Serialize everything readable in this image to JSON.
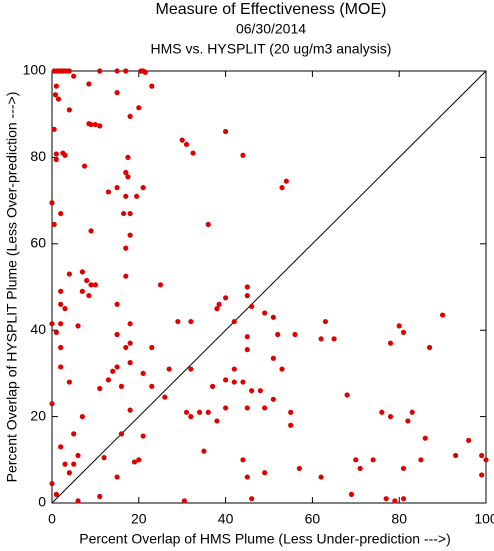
{
  "chart_data": {
    "type": "scatter",
    "title": "Measure of Effectiveness (MOE)",
    "subtitle": "06/30/2014",
    "subtitle2": "HMS vs. HYSPLIT  (20 ug/m3 analysis)",
    "x_label": "Percent Overlap of HMS Plume (Less Under-prediction --->)",
    "y_label": "Percent Overlap of HYSPLIT Plume (Less Over-prediction --->)",
    "color": "#e00000",
    "xlim": [
      0,
      100
    ],
    "ylim": [
      0,
      100
    ],
    "xticks": [
      0,
      20,
      40,
      60,
      80,
      100
    ],
    "yticks": [
      0,
      20,
      40,
      60,
      80,
      100
    ],
    "x": [
      0.5,
      1,
      1.5,
      2,
      2.5,
      3,
      3.5,
      4,
      11,
      15,
      17,
      20.5,
      21,
      21.5,
      5,
      8.5,
      23,
      1,
      0.8,
      1.5,
      15,
      4,
      20,
      18,
      8.5,
      9,
      10,
      11,
      0.5,
      40,
      30,
      2.5,
      1,
      3,
      31,
      32.5,
      44,
      1,
      17.5,
      7.5,
      17,
      17.5,
      15,
      21,
      13,
      17,
      19.5,
      53,
      54,
      0,
      16.5,
      2,
      18,
      0.5,
      9,
      18,
      36,
      17,
      4,
      7,
      8,
      17,
      25,
      9,
      10,
      2,
      7,
      8.5,
      15,
      2,
      3,
      38,
      40,
      38.5,
      45,
      45,
      46,
      49,
      51,
      2,
      6,
      18,
      29,
      32,
      42,
      0,
      1,
      2,
      15,
      18,
      17,
      23,
      45,
      52,
      56,
      62,
      63,
      65,
      80,
      81,
      78,
      90,
      87,
      45,
      51,
      53,
      42,
      42,
      40,
      37,
      44,
      46,
      48,
      14,
      15,
      18,
      21,
      32,
      11,
      13,
      16,
      4,
      2,
      27,
      23,
      26,
      7,
      18,
      0,
      5,
      2,
      16,
      21,
      31,
      32,
      34,
      36,
      38,
      40,
      45,
      51,
      49,
      55,
      55,
      76,
      78,
      83,
      82,
      86,
      68,
      70,
      74,
      81,
      85,
      93,
      96,
      99,
      0,
      1,
      3,
      4,
      5,
      6,
      12,
      15,
      19,
      20,
      35,
      44,
      45,
      49,
      57,
      62,
      69,
      71,
      77,
      79,
      81,
      6,
      11,
      30.5,
      46,
      99,
      100
    ],
    "values": [
      100,
      100,
      100,
      100,
      100,
      100,
      100,
      100,
      100,
      100,
      100,
      100,
      100,
      99.7,
      98.8,
      97,
      96.5,
      96.5,
      94.5,
      93.5,
      95,
      91,
      91.5,
      89.5,
      87.8,
      87.6,
      87.6,
      87.3,
      86.5,
      86,
      84,
      81,
      80.8,
      80.5,
      83,
      81,
      80.5,
      79.5,
      80,
      78,
      76.5,
      75.5,
      73,
      73,
      72,
      71,
      71,
      73,
      74.5,
      69.5,
      67,
      67,
      67,
      64.5,
      63,
      62,
      64.5,
      59,
      53,
      53.5,
      51.5,
      52.5,
      50.5,
      50.5,
      50.5,
      49,
      49,
      48,
      46,
      46,
      45,
      45,
      47.5,
      46,
      50,
      48,
      45.5,
      44,
      43,
      41.5,
      41,
      41.5,
      42,
      42,
      42,
      41.5,
      39.5,
      36,
      39,
      37,
      36,
      36,
      38.5,
      39,
      39,
      38,
      42,
      38,
      41,
      39.5,
      37,
      43.5,
      36,
      35.5,
      33.5,
      31,
      31,
      28,
      28.5,
      27,
      28,
      26,
      26,
      30.5,
      31.5,
      32.5,
      30,
      31,
      26.5,
      28.5,
      27,
      28,
      31.5,
      31,
      27,
      24.5,
      20,
      21.5,
      23,
      16,
      13,
      16,
      15.5,
      21,
      20,
      21,
      21,
      19,
      22,
      22,
      24,
      22,
      21,
      18,
      21,
      20,
      21,
      19,
      15,
      25,
      10,
      10,
      8,
      10,
      11,
      14.5,
      11,
      4.5,
      2,
      9,
      7,
      9,
      11,
      10.5,
      6,
      9.5,
      10,
      12,
      10,
      6,
      7,
      8,
      6,
      2,
      8,
      1,
      0.5,
      1,
      0.5,
      1.5,
      0.5,
      1,
      6.5,
      10
    ]
  }
}
